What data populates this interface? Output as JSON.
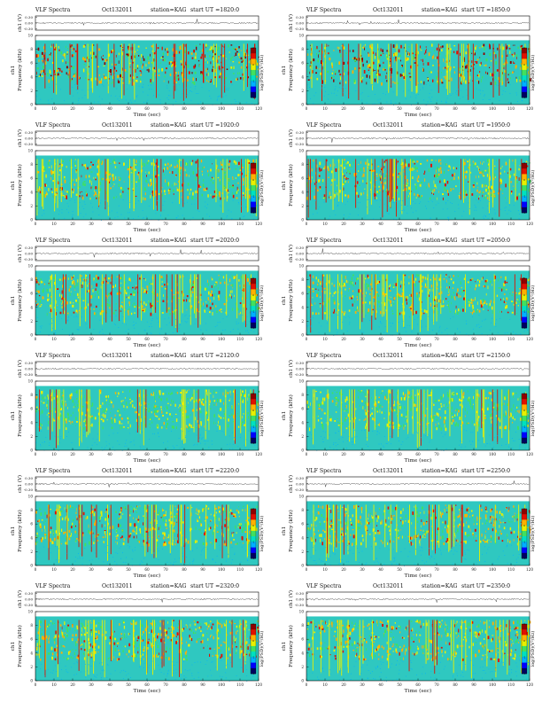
{
  "page": {
    "title_prefix": "VLF Spectra",
    "date_label": "Oct132011",
    "station_label": "station=KAG",
    "start_prefix": "start  UT  =",
    "ch_label": "ch1 (V)",
    "ch_ticks": [
      "0.30",
      "0.00",
      "-0.30"
    ],
    "y_label": "Frequency  (kHz)",
    "y_channel": "ch1",
    "x_label": "Time  (sec)",
    "colorbar_label": "log(PSD)(V²/Hz)"
  },
  "colors": {
    "background_spectrogram": "#2fc8c0",
    "colormap": [
      "#000060",
      "#0000ff",
      "#00b0ff",
      "#00e0c0",
      "#40e060",
      "#e8f000",
      "#ffb000",
      "#e01000",
      "#900000"
    ]
  },
  "chart_data": [
    {
      "type": "heatmap",
      "start_ut": "1820:0",
      "x_ticks": [
        0,
        10,
        20,
        30,
        40,
        50,
        60,
        70,
        80,
        90,
        100,
        110,
        120
      ],
      "y_ticks": [
        0,
        2,
        4,
        6,
        8,
        10
      ],
      "xlim": [
        0,
        120
      ],
      "ylim": [
        0,
        10
      ],
      "colorbar": [
        -4,
        -2,
        0,
        2
      ],
      "intensity": "high"
    },
    {
      "type": "heatmap",
      "start_ut": "1850:0",
      "x_ticks": [
        0,
        10,
        20,
        30,
        40,
        50,
        60,
        70,
        80,
        90,
        100,
        110,
        120
      ],
      "y_ticks": [
        0,
        2,
        4,
        6,
        8,
        10
      ],
      "xlim": [
        0,
        120
      ],
      "ylim": [
        0,
        10
      ],
      "colorbar": [
        -4,
        -2,
        0,
        2
      ],
      "intensity": "high"
    },
    {
      "type": "heatmap",
      "start_ut": "1920:0",
      "x_ticks": [
        0,
        10,
        20,
        30,
        40,
        50,
        60,
        70,
        80,
        90,
        100,
        110,
        120
      ],
      "y_ticks": [
        0,
        2,
        4,
        6,
        8,
        10
      ],
      "xlim": [
        0,
        120
      ],
      "ylim": [
        0,
        10
      ],
      "colorbar": [
        -4,
        -2,
        0,
        2
      ],
      "intensity": "medium"
    },
    {
      "type": "heatmap",
      "start_ut": "1950:0",
      "x_ticks": [
        0,
        10,
        20,
        30,
        40,
        50,
        60,
        70,
        80,
        90,
        100,
        110,
        120
      ],
      "y_ticks": [
        0,
        2,
        4,
        6,
        8,
        10
      ],
      "xlim": [
        0,
        120
      ],
      "ylim": [
        0,
        10
      ],
      "colorbar": [
        -4,
        -2,
        0,
        2
      ],
      "intensity": "medium"
    },
    {
      "type": "heatmap",
      "start_ut": "2020:0",
      "x_ticks": [
        0,
        10,
        20,
        30,
        40,
        50,
        60,
        70,
        80,
        90,
        100,
        110,
        120
      ],
      "y_ticks": [
        0,
        2,
        4,
        6,
        8,
        10
      ],
      "xlim": [
        0,
        120
      ],
      "ylim": [
        0,
        10
      ],
      "colorbar": [
        -4,
        -2,
        0,
        2
      ],
      "intensity": "medium"
    },
    {
      "type": "heatmap",
      "start_ut": "2050:0",
      "x_ticks": [
        0,
        10,
        20,
        30,
        40,
        50,
        60,
        70,
        80,
        90,
        100,
        110,
        120
      ],
      "y_ticks": [
        0,
        2,
        4,
        6,
        8,
        10
      ],
      "xlim": [
        0,
        120
      ],
      "ylim": [
        0,
        10
      ],
      "colorbar": [
        -4,
        -2,
        0,
        2
      ],
      "intensity": "medium"
    },
    {
      "type": "heatmap",
      "start_ut": "2120:0",
      "x_ticks": [
        0,
        10,
        20,
        30,
        40,
        50,
        60,
        70,
        80,
        90,
        100,
        110,
        120
      ],
      "y_ticks": [
        0,
        2,
        4,
        6,
        8,
        10
      ],
      "xlim": [
        0,
        120
      ],
      "ylim": [
        0,
        10
      ],
      "colorbar": [
        -4,
        -2,
        0,
        2
      ],
      "intensity": "low"
    },
    {
      "type": "heatmap",
      "start_ut": "2150:0",
      "x_ticks": [
        0,
        10,
        20,
        30,
        40,
        50,
        60,
        70,
        80,
        90,
        100,
        110,
        120
      ],
      "y_ticks": [
        0,
        2,
        4,
        6,
        8,
        10
      ],
      "xlim": [
        0,
        120
      ],
      "ylim": [
        0,
        10
      ],
      "colorbar": [
        -4,
        -2,
        0,
        2
      ],
      "intensity": "low"
    },
    {
      "type": "heatmap",
      "start_ut": "2220:0",
      "x_ticks": [
        0,
        10,
        20,
        30,
        40,
        50,
        60,
        70,
        80,
        90,
        100,
        110,
        120
      ],
      "y_ticks": [
        0,
        2,
        4,
        6,
        8,
        10
      ],
      "xlim": [
        0,
        120
      ],
      "ylim": [
        0,
        10
      ],
      "colorbar": [
        -4,
        -2,
        0,
        2
      ],
      "intensity": "medium"
    },
    {
      "type": "heatmap",
      "start_ut": "2250:0",
      "x_ticks": [
        0,
        10,
        20,
        30,
        40,
        50,
        60,
        70,
        80,
        90,
        100,
        110,
        120
      ],
      "y_ticks": [
        0,
        2,
        4,
        6,
        8,
        10
      ],
      "xlim": [
        0,
        120
      ],
      "ylim": [
        0,
        10
      ],
      "colorbar": [
        -4,
        -2,
        0,
        2
      ],
      "intensity": "medium"
    },
    {
      "type": "heatmap",
      "start_ut": "2320:0",
      "x_ticks": [
        0,
        10,
        20,
        30,
        40,
        50,
        60,
        70,
        80,
        90,
        100,
        110,
        120
      ],
      "y_ticks": [
        0,
        2,
        4,
        6,
        8,
        10
      ],
      "xlim": [
        0,
        120
      ],
      "ylim": [
        0,
        10
      ],
      "colorbar": [
        -4,
        -2,
        0,
        2
      ],
      "intensity": "medium"
    },
    {
      "type": "heatmap",
      "start_ut": "2350:0",
      "x_ticks": [
        0,
        10,
        20,
        30,
        40,
        50,
        60,
        70,
        80,
        90,
        100,
        110,
        120
      ],
      "y_ticks": [
        0,
        2,
        4,
        6,
        8,
        10
      ],
      "xlim": [
        0,
        120
      ],
      "ylim": [
        0,
        10
      ],
      "colorbar": [
        -4,
        -2,
        0,
        2
      ],
      "intensity": "medium"
    }
  ]
}
